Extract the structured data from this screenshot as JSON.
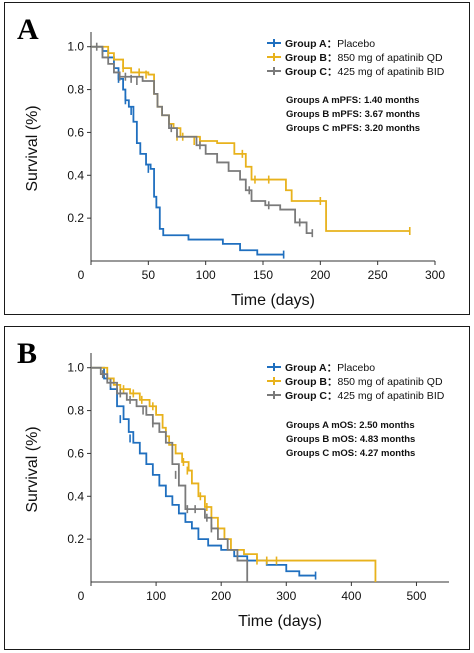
{
  "colors": {
    "group_a": "#1f6fbf",
    "group_b": "#e8b21c",
    "group_c": "#7a7a7a"
  },
  "chart_data": [
    {
      "type": "line",
      "panel_label": "A",
      "xlabel": "Time (days)",
      "ylabel": "Survival (%)",
      "xlim": [
        0,
        300
      ],
      "ylim": [
        0,
        1.05
      ],
      "xticks": [
        "0",
        "50",
        "100",
        "150",
        "200",
        "250",
        "300"
      ],
      "yticks": [
        "0.2",
        "0.4",
        "0.6",
        "0.8",
        "1.0"
      ],
      "legend": [
        {
          "key": "Group A：",
          "desc": "Placebo",
          "color": "#1f6fbf"
        },
        {
          "key": "Group B：",
          "desc": "850 mg of apatinib QD",
          "color": "#e8b21c"
        },
        {
          "key": "Group C：",
          "desc": "425 mg of apatinib BID",
          "color": "#7a7a7a"
        }
      ],
      "annotations": [
        "Groups A mPFS: 1.40 months",
        "Groups B mPFS: 3.67 months",
        "Groups C mPFS: 3.20 months"
      ],
      "series": [
        {
          "name": "Group A",
          "color": "#1f6fbf",
          "steps": [
            [
              0,
              1.0
            ],
            [
              10,
              0.98
            ],
            [
              15,
              0.95
            ],
            [
              20,
              0.9
            ],
            [
              24,
              0.85
            ],
            [
              28,
              0.8
            ],
            [
              30,
              0.75
            ],
            [
              33,
              0.72
            ],
            [
              37,
              0.65
            ],
            [
              40,
              0.55
            ],
            [
              43,
              0.5
            ],
            [
              48,
              0.45
            ],
            [
              52,
              0.43
            ],
            [
              55,
              0.3
            ],
            [
              57,
              0.25
            ],
            [
              60,
              0.15
            ],
            [
              63,
              0.12
            ],
            [
              85,
              0.1
            ],
            [
              115,
              0.08
            ],
            [
              130,
              0.05
            ],
            [
              145,
              0.03
            ],
            [
              168,
              0.03
            ]
          ],
          "censor": [
            [
              10,
              0.98
            ],
            [
              24,
              0.85
            ],
            [
              30,
              0.75
            ],
            [
              35,
              0.7
            ],
            [
              50,
              0.43
            ],
            [
              168,
              0.03
            ]
          ]
        },
        {
          "name": "Group B",
          "color": "#e8b21c",
          "steps": [
            [
              0,
              1.0
            ],
            [
              15,
              0.97
            ],
            [
              20,
              0.94
            ],
            [
              28,
              0.9
            ],
            [
              35,
              0.88
            ],
            [
              50,
              0.87
            ],
            [
              55,
              0.78
            ],
            [
              58,
              0.72
            ],
            [
              62,
              0.68
            ],
            [
              68,
              0.64
            ],
            [
              72,
              0.62
            ],
            [
              78,
              0.58
            ],
            [
              95,
              0.56
            ],
            [
              110,
              0.55
            ],
            [
              125,
              0.5
            ],
            [
              135,
              0.44
            ],
            [
              140,
              0.38
            ],
            [
              170,
              0.33
            ],
            [
              175,
              0.28
            ],
            [
              205,
              0.14
            ],
            [
              278,
              0.14
            ]
          ],
          "censor": [
            [
              15,
              0.97
            ],
            [
              28,
              0.9
            ],
            [
              42,
              0.88
            ],
            [
              48,
              0.87
            ],
            [
              75,
              0.58
            ],
            [
              80,
              0.58
            ],
            [
              90,
              0.56
            ],
            [
              95,
              0.56
            ],
            [
              132,
              0.5
            ],
            [
              143,
              0.38
            ],
            [
              155,
              0.38
            ],
            [
              200,
              0.28
            ],
            [
              278,
              0.14
            ]
          ]
        },
        {
          "name": "Group C",
          "color": "#7a7a7a",
          "steps": [
            [
              0,
              1.0
            ],
            [
              10,
              0.95
            ],
            [
              15,
              0.92
            ],
            [
              20,
              0.88
            ],
            [
              25,
              0.86
            ],
            [
              45,
              0.84
            ],
            [
              55,
              0.78
            ],
            [
              58,
              0.72
            ],
            [
              62,
              0.68
            ],
            [
              68,
              0.62
            ],
            [
              75,
              0.58
            ],
            [
              92,
              0.54
            ],
            [
              100,
              0.5
            ],
            [
              110,
              0.46
            ],
            [
              120,
              0.42
            ],
            [
              130,
              0.38
            ],
            [
              135,
              0.33
            ],
            [
              140,
              0.28
            ],
            [
              152,
              0.26
            ],
            [
              165,
              0.24
            ],
            [
              178,
              0.18
            ],
            [
              188,
              0.13
            ],
            [
              193,
              0.13
            ]
          ],
          "censor": [
            [
              5,
              1.0
            ],
            [
              25,
              0.86
            ],
            [
              30,
              0.86
            ],
            [
              35,
              0.85
            ],
            [
              40,
              0.84
            ],
            [
              70,
              0.62
            ],
            [
              95,
              0.54
            ],
            [
              138,
              0.33
            ],
            [
              155,
              0.26
            ],
            [
              182,
              0.18
            ],
            [
              193,
              0.13
            ]
          ]
        }
      ]
    },
    {
      "type": "line",
      "panel_label": "B",
      "xlabel": "Time (days)",
      "ylabel": "Survival (%)",
      "xlim": [
        0,
        550
      ],
      "ylim": [
        0,
        1.05
      ],
      "xticks": [
        "0",
        "100",
        "200",
        "300",
        "400",
        "500"
      ],
      "yticks": [
        "0.2",
        "0.4",
        "0.6",
        "0.8",
        "1.0"
      ],
      "legend": [
        {
          "key": "Group A：",
          "desc": "Placebo",
          "color": "#1f6fbf"
        },
        {
          "key": "Group B：",
          "desc": "850 mg of apatinib QD",
          "color": "#e8b21c"
        },
        {
          "key": "Group C：",
          "desc": "425 mg of apatinib BID",
          "color": "#7a7a7a"
        }
      ],
      "annotations": [
        "Groups A mOS: 2.50 months",
        "Groups B mOS: 4.83 months",
        "Groups C mOS: 4.27 months"
      ],
      "series": [
        {
          "name": "Group A",
          "color": "#1f6fbf",
          "steps": [
            [
              0,
              1.0
            ],
            [
              20,
              0.95
            ],
            [
              30,
              0.9
            ],
            [
              40,
              0.82
            ],
            [
              50,
              0.76
            ],
            [
              58,
              0.7
            ],
            [
              65,
              0.65
            ],
            [
              75,
              0.6
            ],
            [
              85,
              0.55
            ],
            [
              95,
              0.5
            ],
            [
              105,
              0.45
            ],
            [
              115,
              0.4
            ],
            [
              125,
              0.36
            ],
            [
              135,
              0.32
            ],
            [
              145,
              0.28
            ],
            [
              155,
              0.25
            ],
            [
              165,
              0.2
            ],
            [
              180,
              0.17
            ],
            [
              200,
              0.15
            ],
            [
              220,
              0.12
            ],
            [
              240,
              0.1
            ],
            [
              270,
              0.08
            ],
            [
              300,
              0.05
            ],
            [
              320,
              0.03
            ],
            [
              345,
              0.03
            ]
          ],
          "censor": [
            [
              45,
              0.76
            ],
            [
              60,
              0.67
            ],
            [
              345,
              0.03
            ]
          ]
        },
        {
          "name": "Group B",
          "color": "#e8b21c",
          "steps": [
            [
              0,
              1.0
            ],
            [
              25,
              0.95
            ],
            [
              35,
              0.92
            ],
            [
              45,
              0.9
            ],
            [
              60,
              0.88
            ],
            [
              75,
              0.85
            ],
            [
              90,
              0.82
            ],
            [
              100,
              0.78
            ],
            [
              110,
              0.72
            ],
            [
              115,
              0.68
            ],
            [
              120,
              0.64
            ],
            [
              130,
              0.6
            ],
            [
              140,
              0.56
            ],
            [
              150,
              0.52
            ],
            [
              155,
              0.46
            ],
            [
              165,
              0.4
            ],
            [
              175,
              0.35
            ],
            [
              185,
              0.3
            ],
            [
              195,
              0.25
            ],
            [
              205,
              0.2
            ],
            [
              215,
              0.15
            ],
            [
              235,
              0.13
            ],
            [
              255,
              0.1
            ],
            [
              270,
              0.1
            ],
            [
              285,
              0.1
            ],
            [
              360,
              0.1
            ],
            [
              437,
              0.0
            ]
          ],
          "censor": [
            [
              50,
              0.9
            ],
            [
              65,
              0.88
            ],
            [
              78,
              0.85
            ],
            [
              95,
              0.82
            ],
            [
              142,
              0.56
            ],
            [
              148,
              0.52
            ],
            [
              168,
              0.4
            ],
            [
              178,
              0.35
            ],
            [
              255,
              0.1
            ],
            [
              270,
              0.1
            ],
            [
              285,
              0.1
            ]
          ]
        },
        {
          "name": "Group C",
          "color": "#7a7a7a",
          "steps": [
            [
              0,
              1.0
            ],
            [
              15,
              0.97
            ],
            [
              25,
              0.93
            ],
            [
              40,
              0.88
            ],
            [
              55,
              0.85
            ],
            [
              70,
              0.82
            ],
            [
              85,
              0.78
            ],
            [
              95,
              0.74
            ],
            [
              105,
              0.7
            ],
            [
              115,
              0.65
            ],
            [
              125,
              0.55
            ],
            [
              135,
              0.45
            ],
            [
              145,
              0.34
            ],
            [
              175,
              0.3
            ],
            [
              185,
              0.25
            ],
            [
              195,
              0.2
            ],
            [
              210,
              0.15
            ],
            [
              225,
              0.1
            ],
            [
              240,
              0.0
            ]
          ],
          "censor": [
            [
              18,
              0.97
            ],
            [
              30,
              0.93
            ],
            [
              45,
              0.88
            ],
            [
              60,
              0.85
            ],
            [
              80,
              0.8
            ],
            [
              95,
              0.74
            ],
            [
              130,
              0.5
            ],
            [
              148,
              0.34
            ],
            [
              160,
              0.34
            ],
            [
              178,
              0.3
            ],
            [
              185,
              0.25
            ]
          ]
        }
      ]
    }
  ]
}
